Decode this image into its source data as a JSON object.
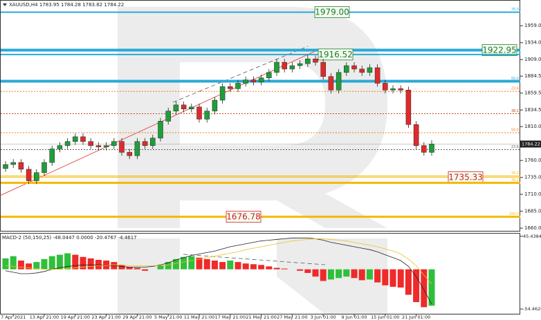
{
  "header": "XAUUSD,H4  1783.95 1784.28 1783.82 1784.22",
  "chart_data": [
    {
      "type": "candlestick",
      "x": [
        null,
        "7 Apr 2021",
        null,
        null,
        null,
        "13 Apr 21:00",
        null,
        null,
        null,
        "19 Apr 21:00",
        null,
        null,
        null,
        "23 Apr 21:00",
        null,
        null,
        null,
        "29 Apr 21:00",
        null,
        null,
        null,
        "5 May 21:00",
        null,
        null,
        null,
        "11 May 21:00",
        null,
        null,
        null,
        "17 May 21:00",
        null,
        null,
        null,
        "21 May 21:00",
        null,
        null,
        null,
        "27 May 21:00",
        null,
        null,
        null,
        "3 Jun 01:00",
        null,
        null,
        null,
        "9 Jun 01:00",
        null,
        null,
        null,
        "15 Jun 01:00",
        null,
        null,
        null,
        "21 Jun 01:00",
        null,
        null
      ],
      "open": [
        1748,
        1754,
        1757,
        1747,
        1730,
        1742,
        1757,
        1777,
        1782,
        1788,
        1795,
        1788,
        1782,
        1780,
        1782,
        1788,
        1772,
        1767,
        1788,
        1782,
        1793,
        1818,
        1833,
        1842,
        1836,
        1839,
        1821,
        1833,
        1849,
        1869,
        1866,
        1874,
        1879,
        1876,
        1882,
        1890,
        1905,
        1895,
        1900,
        1903,
        1910,
        1905,
        1884,
        1864,
        1890,
        1900,
        1895,
        1890,
        1897,
        1874,
        1864,
        1866,
        1864,
        1813,
        1782,
        1772
      ],
      "high": [
        1759,
        1762,
        1762,
        1752,
        1747,
        1762,
        1782,
        1787,
        1793,
        1800,
        1800,
        1793,
        1787,
        1787,
        1793,
        1793,
        1777,
        1793,
        1793,
        1798,
        1823,
        1838,
        1847,
        1847,
        1844,
        1844,
        1838,
        1854,
        1874,
        1874,
        1879,
        1884,
        1884,
        1887,
        1895,
        1910,
        1910,
        1905,
        1908,
        1916.52,
        1915,
        1910,
        1889,
        1895,
        1905,
        1905,
        1900,
        1902,
        1902,
        1879,
        1871,
        1871,
        1869,
        1818,
        1787,
        1790
      ],
      "low": [
        1743,
        1749,
        1742,
        1725,
        1725,
        1737,
        1752,
        1772,
        1777,
        1783,
        1783,
        1777,
        1775,
        1775,
        1777,
        1767,
        1762,
        1762,
        1777,
        1777,
        1788,
        1813,
        1828,
        1831,
        1831,
        1816,
        1816,
        1828,
        1844,
        1861,
        1861,
        1869,
        1871,
        1871,
        1877,
        1885,
        1890,
        1890,
        1895,
        1898,
        1900,
        1879,
        1859,
        1859,
        1885,
        1890,
        1885,
        1885,
        1869,
        1859,
        1859,
        1859,
        1808,
        1777,
        1767,
        1767
      ],
      "close": [
        1754,
        1757,
        1747,
        1730,
        1742,
        1757,
        1777,
        1782,
        1788,
        1795,
        1788,
        1782,
        1780,
        1782,
        1788,
        1772,
        1767,
        1788,
        1782,
        1793,
        1818,
        1833,
        1842,
        1836,
        1839,
        1821,
        1833,
        1849,
        1869,
        1866,
        1874,
        1879,
        1876,
        1882,
        1890,
        1905,
        1895,
        1900,
        1903,
        1910,
        1905,
        1884,
        1864,
        1890,
        1900,
        1895,
        1890,
        1897,
        1874,
        1864,
        1866,
        1864,
        1813,
        1782,
        1772,
        1784.22
      ],
      "up_color": "#1f9e3a",
      "down_color": "#e02a2a",
      "ylim": [
        1655,
        1997
      ],
      "yticks": [
        {
          "value": 1959,
          "label": "1959.00"
        },
        {
          "value": 1934,
          "label": "1934.00"
        },
        {
          "value": 1909,
          "label": "1909.00"
        },
        1884.5,
        1859.5,
        1834.5,
        {
          "value": 1810,
          "label": "1810.00"
        },
        {
          "value": 1760,
          "label": "1760.00"
        },
        {
          "value": 1735,
          "label": "1735.00"
        },
        {
          "value": 1710,
          "label": "1710.00"
        },
        {
          "value": 1685,
          "label": "1685.00"
        },
        {
          "value": 1660,
          "label": "1660.00"
        }
      ],
      "last_price": 1784.22,
      "levels": [
        {
          "value": 1979,
          "label": "1979.00",
          "label_color": "#1e7a2e",
          "color": "#29a9d6",
          "width": 2,
          "fib": "76.0"
        },
        {
          "value": 1922.95,
          "label": "1922.95",
          "label_color": "#1e7a2e",
          "color": "#29a9d6",
          "width": 4
        },
        {
          "value": 1916.52,
          "label": "1916.52",
          "label_color": "#1e7a2e",
          "color": "#29a9d6",
          "width": 2
        },
        {
          "value": 1877,
          "color": "#29a9d6",
          "width": 4,
          "fib": "50.0"
        },
        {
          "value": 1862,
          "color": "#f07d1a",
          "width": 1,
          "dash": true,
          "fib": "23.6"
        },
        {
          "value": 1829,
          "color": "#c04a10",
          "width": 1,
          "dash": true,
          "fib": "38.2"
        },
        {
          "value": 1801,
          "color": "#f07d1a",
          "width": 1,
          "dash": true,
          "fib": "50.0"
        },
        {
          "value": 1776,
          "color": "#555555",
          "width": 1,
          "dash": true,
          "fib": "23.6"
        },
        {
          "value": 1737,
          "color": "#f5b800",
          "width": 1,
          "fib": "76.0"
        },
        {
          "value": 1735.33,
          "label": "1735.33",
          "label_color": "#d02020",
          "color": "#f5b800",
          "width": 1
        },
        {
          "value": 1727,
          "color": "#f5b800",
          "width": 3,
          "fib": "38.2"
        },
        {
          "value": 1676.78,
          "label": "1676.78",
          "label_color": "#d02020",
          "color": "#f5b800",
          "width": 3,
          "fib": "100.0"
        }
      ]
    },
    {
      "type": "macd",
      "title": "MACD-2 (50,150,25) -48.0447 0.0000 -20.4767 -4.4617",
      "histogram": [
        15,
        18,
        12,
        8,
        10,
        14,
        18,
        20,
        22,
        20,
        17,
        15,
        13,
        12,
        10,
        6,
        3,
        2,
        -2,
        0,
        5,
        10,
        14,
        17,
        18,
        16,
        14,
        12,
        10,
        12,
        10,
        8,
        7,
        6,
        4,
        2,
        1,
        0,
        -2,
        -5,
        -10,
        -16,
        -14,
        -12,
        -10,
        -12,
        -15,
        -14,
        -18,
        -22,
        -24,
        -25,
        -35,
        -45,
        -52,
        -50
      ],
      "up_color": "#2fbf3a",
      "down_color": "#ee2a2a",
      "lines": [
        {
          "color": "#222222",
          "values": [
            -2,
            -4,
            -6,
            -6,
            -5,
            -3,
            0,
            2,
            4,
            5,
            6,
            6,
            6,
            5,
            5,
            4,
            3,
            3,
            3,
            4,
            6,
            9,
            13,
            16,
            19,
            21,
            23,
            25,
            28,
            31,
            33,
            35,
            37,
            39,
            40,
            41,
            42,
            43,
            43,
            43,
            42,
            40,
            37,
            35,
            33,
            31,
            29,
            27,
            24,
            20,
            16,
            12,
            4,
            -10,
            -28,
            -48
          ]
        },
        {
          "color": "#f0c020",
          "values": [
            5,
            4,
            3,
            2,
            1,
            0,
            0,
            0,
            1,
            2,
            3,
            4,
            5,
            5,
            6,
            6,
            5,
            5,
            5,
            5,
            5,
            6,
            8,
            10,
            12,
            14,
            16,
            18,
            20,
            22,
            24,
            27,
            29,
            31,
            33,
            35,
            37,
            39,
            40,
            41,
            42,
            42,
            41,
            40,
            39,
            37,
            35,
            33,
            31,
            28,
            25,
            21,
            14,
            5,
            -8,
            -20
          ]
        }
      ],
      "ylim": [
        -62,
        49
      ],
      "yticks": [
        45.4384,
        -54.4628
      ]
    }
  ]
}
